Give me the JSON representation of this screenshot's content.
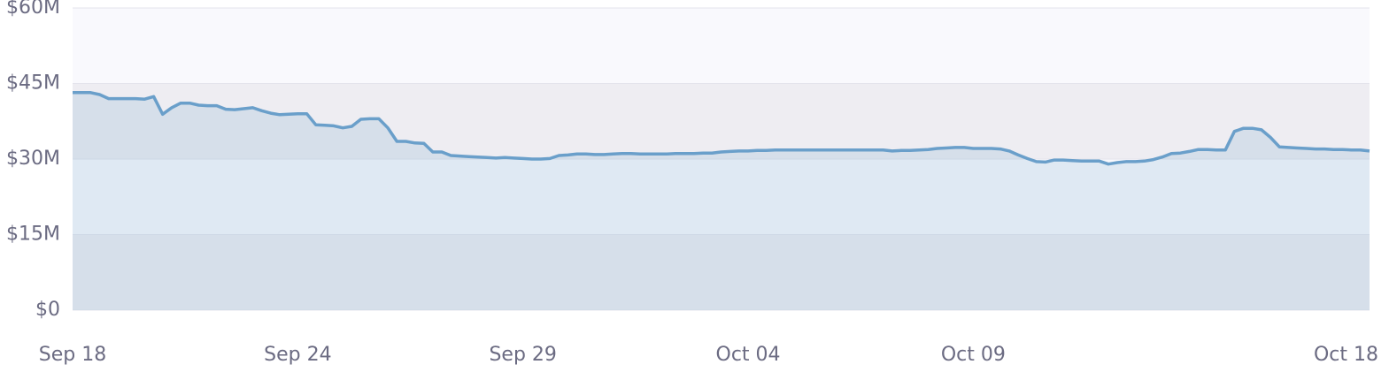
{
  "chart_data": {
    "type": "line",
    "categories": [
      "Sep 18",
      null,
      null,
      null,
      null,
      null,
      null,
      null,
      null,
      null,
      null,
      null,
      null,
      null,
      null,
      null,
      null,
      null,
      null,
      null,
      null,
      null,
      null,
      null,
      null,
      "Sep 24",
      null,
      null,
      null,
      null,
      null,
      null,
      null,
      null,
      null,
      null,
      null,
      null,
      null,
      null,
      null,
      null,
      null,
      null,
      null,
      null,
      null,
      null,
      null,
      null,
      "Sep 29",
      null,
      null,
      null,
      null,
      null,
      null,
      null,
      null,
      null,
      null,
      null,
      null,
      null,
      null,
      null,
      null,
      null,
      null,
      null,
      null,
      null,
      null,
      null,
      null,
      "Oct 04",
      null,
      null,
      null,
      null,
      null,
      null,
      null,
      null,
      null,
      null,
      null,
      null,
      null,
      null,
      null,
      null,
      null,
      null,
      null,
      null,
      null,
      null,
      null,
      null,
      "Oct 09",
      null,
      null,
      null,
      null,
      null,
      null,
      null,
      null,
      null,
      null,
      null,
      null,
      null,
      null,
      null,
      null,
      null,
      null,
      null,
      null,
      null,
      null,
      null,
      null,
      null,
      null,
      null,
      null,
      null,
      null,
      null,
      null,
      null,
      null,
      null,
      null,
      null,
      null,
      null,
      null,
      null,
      null,
      null,
      "Oct 18"
    ],
    "series": [
      {
        "color": "#6a9fca",
        "values": [
          43.2,
          43.2,
          43.2,
          42.8,
          42.0,
          42.0,
          42.0,
          42.0,
          41.9,
          42.4,
          38.9,
          40.2,
          41.1,
          41.1,
          40.7,
          40.6,
          40.6,
          39.9,
          39.8,
          40.0,
          40.2,
          39.6,
          39.1,
          38.8,
          38.9,
          39.0,
          39.0,
          36.8,
          36.7,
          36.6,
          36.2,
          36.5,
          37.9,
          38.0,
          38.0,
          36.2,
          33.5,
          33.5,
          33.2,
          33.1,
          31.4,
          31.4,
          30.7,
          30.6,
          30.5,
          30.4,
          30.3,
          30.2,
          30.3,
          30.2,
          30.1,
          30.0,
          30.0,
          30.1,
          30.7,
          30.8,
          31.0,
          31.0,
          30.9,
          30.9,
          31.0,
          31.1,
          31.1,
          31.0,
          31.0,
          31.0,
          31.0,
          31.1,
          31.1,
          31.1,
          31.2,
          31.2,
          31.4,
          31.5,
          31.6,
          31.6,
          31.7,
          31.7,
          31.8,
          31.8,
          31.8,
          31.8,
          31.8,
          31.8,
          31.8,
          31.8,
          31.8,
          31.8,
          31.8,
          31.8,
          31.8,
          31.6,
          31.7,
          31.7,
          31.8,
          31.9,
          32.1,
          32.2,
          32.3,
          32.3,
          32.1,
          32.1,
          32.1,
          32.0,
          31.6,
          30.8,
          30.1,
          29.5,
          29.4,
          29.8,
          29.8,
          29.7,
          29.6,
          29.6,
          29.6,
          29.0,
          29.3,
          29.5,
          29.5,
          29.6,
          29.9,
          30.4,
          31.1,
          31.2,
          31.5,
          31.9,
          31.9,
          31.8,
          31.8,
          35.5,
          36.1,
          36.1,
          35.8,
          34.3,
          32.4,
          32.3,
          32.2,
          32.1,
          32.0,
          32.0,
          31.9,
          31.9,
          31.8,
          31.8,
          31.6
        ]
      }
    ],
    "ylim": [
      0,
      60
    ],
    "yticks": [
      {
        "value": 0,
        "label": "$0"
      },
      {
        "value": 15,
        "label": "$15M"
      },
      {
        "value": 30,
        "label": "$30M"
      },
      {
        "value": 45,
        "label": "$45M"
      },
      {
        "value": 60,
        "label": "$60M"
      }
    ],
    "grid": true
  }
}
